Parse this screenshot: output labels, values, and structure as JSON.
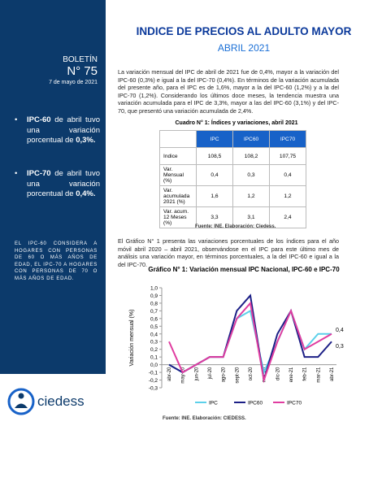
{
  "sidebar": {
    "label": "BOLETÍN",
    "number": "N° 75",
    "date": "7 de mayo de 2021",
    "bullets": [
      [
        {
          "text": "IPC-60",
          "bold": true
        },
        {
          "text": " de abril tuvo una variación porcentual de ",
          "bold": false
        },
        {
          "text": "0,3%.",
          "bold": true
        }
      ],
      [
        {
          "text": "IPC-70",
          "bold": true
        },
        {
          "text": " de abril tuvo una variación porcentual de ",
          "bold": false
        },
        {
          "text": "0,4%.",
          "bold": true
        }
      ]
    ],
    "note": "EL IPC-60 CONSIDERA A HOGARES CON PERSONAS DE 60 O MÁS AÑOS DE EDAD, EL IPC-70 A HOGARES CON PERSONAS DE 70 O MÁS AÑOS DE EDAD.",
    "logo": "ciedess"
  },
  "header": {
    "title": "INDICE DE PRECIOS AL ADULTO MAYOR",
    "subtitle": "ABRIL 2021"
  },
  "paragraphs": [
    "La variación mensual del IPC de abril de 2021 fue de 0,4%, mayor a la variación del IPC-60 (0,3%) e igual a la del IPC-70 (0,4%). En términos de la variación acumulada del presente año, para el IPC es de 1,6%, mayor a la del IPC-60 (1,2%) y a la del IPC-70 (1,2%). Considerando los últimos doce meses, la tendencia muestra una variación acumulada para el IPC de 3,3%, mayor a las del IPC-60 (3,1%) y del IPC-70, que presentó una variación acumulada de 2,4%.",
    "El Gráfico N° 1 presenta las variaciones porcentuales de los índices para el año móvil abril 2020 – abril 2021, observándose en el IPC para este último mes de análisis una variación mayor, en términos porcentuales, a la del IPC-60 e igual a la del IPC-70."
  ],
  "table": {
    "caption": "Cuadro N° 1: Índices y variaciones, abril 2021",
    "columns": [
      "IPC",
      "IPC60",
      "IPC70"
    ],
    "rows": [
      {
        "label": "Indice",
        "cells": [
          "108,5",
          "108,2",
          "107,75"
        ]
      },
      {
        "label": "Var. Mensual (%)",
        "cells": [
          "0,4",
          "0,3",
          "0,4"
        ]
      },
      {
        "label": "Var. acumulada 2021 (%)",
        "cells": [
          "1,6",
          "1,2",
          "1,2"
        ]
      },
      {
        "label": "Var. acum. 12 Meses (%)",
        "cells": [
          "3,3",
          "3,1",
          "2,4"
        ]
      }
    ],
    "source": "Fuente: INE. Elaboración: Ciedess."
  },
  "chart_data": {
    "type": "line",
    "title": "Gráfico N° 1: Variación mensual IPC Nacional, IPC-60 e IPC-70",
    "y_label": "Variación mensual (%)",
    "categories": [
      "abr-20",
      "may-20",
      "jun-20",
      "jul-20",
      "ago-20",
      "sept-20",
      "oct-20",
      "nov-20",
      "dic-20",
      "ene-21",
      "feb-21",
      "mar-21",
      "abr-21"
    ],
    "series": [
      {
        "name": "IPC",
        "color": "#5cd0ea",
        "values": [
          0.0,
          -0.1,
          0.0,
          0.1,
          0.1,
          0.6,
          0.7,
          -0.1,
          0.3,
          0.7,
          0.2,
          0.4,
          0.4
        ],
        "value_labels": [
          null,
          null,
          null,
          null,
          null,
          null,
          null,
          null,
          null,
          null,
          null,
          null,
          "0,4"
        ]
      },
      {
        "name": "IPC60",
        "color": "#1c1f86",
        "values": [
          0.0,
          -0.1,
          0.0,
          0.1,
          0.1,
          0.7,
          0.9,
          -0.2,
          0.4,
          0.7,
          0.1,
          0.1,
          0.3
        ],
        "value_labels": [
          null,
          null,
          null,
          null,
          null,
          null,
          null,
          null,
          null,
          null,
          null,
          null,
          "0,3"
        ]
      },
      {
        "name": "IPC70",
        "color": "#e03da0",
        "values": [
          0.3,
          -0.1,
          0.0,
          0.1,
          0.1,
          0.6,
          0.8,
          -0.2,
          0.3,
          0.7,
          0.2,
          0.3,
          0.4
        ]
      }
    ],
    "ylim": [
      -0.3,
      1.0
    ],
    "yticks": [
      {
        "value": 1.0,
        "label": "1,0"
      },
      {
        "value": 0.9,
        "label": "0,9"
      },
      {
        "value": 0.8,
        "label": "0,8"
      },
      {
        "value": 0.7,
        "label": "0,7"
      },
      {
        "value": 0.6,
        "label": "0,6"
      },
      {
        "value": 0.5,
        "label": "0,5"
      },
      {
        "value": 0.4,
        "label": "0,4"
      },
      {
        "value": 0.3,
        "label": "0,3"
      },
      {
        "value": 0.2,
        "label": "0,2"
      },
      {
        "value": 0.1,
        "label": "0,1"
      },
      {
        "value": 0,
        "label": "0,0"
      },
      {
        "value": -0.1,
        "label": "-0,1"
      },
      {
        "value": -0.2,
        "label": "-0,2"
      },
      {
        "value": -0.3,
        "label": "-0,3"
      }
    ],
    "grid": false,
    "legend": "bottom"
  },
  "chart_source": "Fuente: INE. Elaboración: CIEDESS."
}
